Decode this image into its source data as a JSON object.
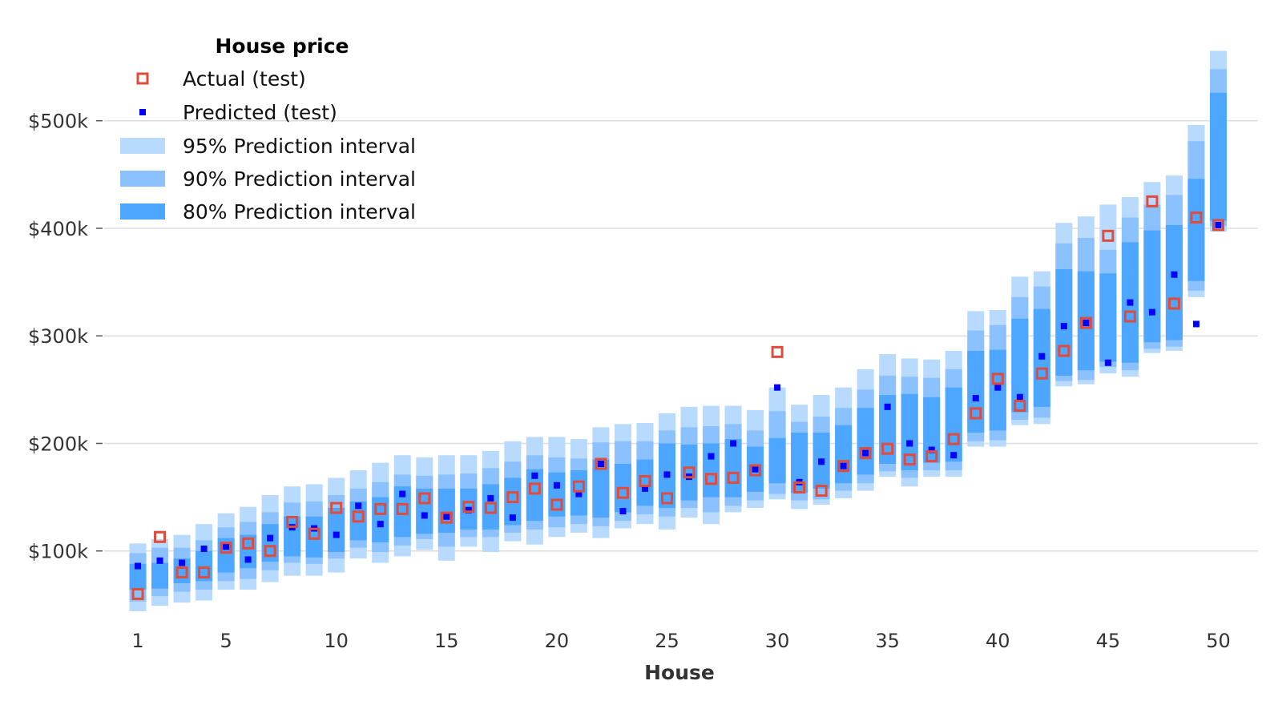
{
  "chart_data": {
    "type": "scatter",
    "title": "",
    "xlabel": "House",
    "ylabel": "",
    "xlim": [
      0.2,
      51.8
    ],
    "ylim": [
      35000,
      575000
    ],
    "x_ticks": [
      1,
      5,
      10,
      15,
      20,
      25,
      30,
      35,
      40,
      45,
      50
    ],
    "y_ticks": [
      {
        "value": 100000,
        "label": "$100k"
      },
      {
        "value": 200000,
        "label": "$200k"
      },
      {
        "value": 300000,
        "label": "$300k"
      },
      {
        "value": 400000,
        "label": "$400k"
      },
      {
        "value": 500000,
        "label": "$500k"
      }
    ],
    "grid": "horizontal",
    "legend": {
      "title": "House price",
      "position": "top-left",
      "entries": [
        {
          "label": "Actual (test)",
          "kind": "actual"
        },
        {
          "label": "Predicted (test)",
          "kind": "predicted"
        },
        {
          "label": "95% Prediction interval",
          "kind": "pi95"
        },
        {
          "label": "90% Prediction interval",
          "kind": "pi90"
        },
        {
          "label": "80% Prediction interval",
          "kind": "pi80"
        }
      ]
    },
    "colors": {
      "actual": "#e04b3a",
      "predicted": "#0000ff",
      "pi95": "#b8daff",
      "pi90": "#8cc1ff",
      "pi80": "#4da6ff",
      "grid": "#dddddd"
    },
    "x": [
      1,
      2,
      3,
      4,
      5,
      6,
      7,
      8,
      9,
      10,
      11,
      12,
      13,
      14,
      15,
      16,
      17,
      18,
      19,
      20,
      21,
      22,
      23,
      24,
      25,
      26,
      27,
      28,
      29,
      30,
      31,
      32,
      33,
      34,
      35,
      36,
      37,
      38,
      39,
      40,
      41,
      42,
      43,
      44,
      45,
      46,
      47,
      48,
      49,
      50
    ],
    "actual": [
      60000,
      113000,
      80000,
      80000,
      103000,
      107000,
      100000,
      127000,
      116000,
      140000,
      132000,
      139000,
      139000,
      149000,
      131000,
      141000,
      140000,
      150000,
      158000,
      143000,
      160000,
      181000,
      154000,
      165000,
      149000,
      173000,
      167000,
      168000,
      175000,
      285000,
      159000,
      156000,
      179000,
      191000,
      195000,
      185000,
      188000,
      204000,
      228000,
      260000,
      235000,
      265000,
      286000,
      312000,
      393000,
      318000,
      425000,
      330000,
      410000,
      403000
    ],
    "predicted": [
      86000,
      91000,
      89000,
      102000,
      104000,
      92000,
      112000,
      122000,
      121000,
      115000,
      142000,
      125000,
      153000,
      133000,
      132000,
      138000,
      149000,
      131000,
      170000,
      161000,
      153000,
      181000,
      137000,
      158000,
      171000,
      169000,
      188000,
      200000,
      176000,
      252000,
      164000,
      183000,
      179000,
      191000,
      234000,
      200000,
      194000,
      189000,
      242000,
      252000,
      243000,
      281000,
      309000,
      312000,
      275000,
      331000,
      322000,
      357000,
      311000,
      403000
    ],
    "pi95": [
      [
        44000,
        107000
      ],
      [
        49000,
        111000
      ],
      [
        52000,
        115000
      ],
      [
        54000,
        125000
      ],
      [
        64000,
        135000
      ],
      [
        64000,
        141000
      ],
      [
        71000,
        152000
      ],
      [
        77000,
        160000
      ],
      [
        77000,
        162000
      ],
      [
        80000,
        168000
      ],
      [
        93000,
        175000
      ],
      [
        89000,
        182000
      ],
      [
        95000,
        189000
      ],
      [
        101000,
        187000
      ],
      [
        91000,
        189000
      ],
      [
        104000,
        189000
      ],
      [
        99000,
        193000
      ],
      [
        109000,
        202000
      ],
      [
        106000,
        206000
      ],
      [
        113000,
        206000
      ],
      [
        117000,
        204000
      ],
      [
        112000,
        215000
      ],
      [
        121000,
        218000
      ],
      [
        125000,
        219000
      ],
      [
        120000,
        228000
      ],
      [
        131000,
        234000
      ],
      [
        125000,
        235000
      ],
      [
        136000,
        235000
      ],
      [
        140000,
        231000
      ],
      [
        148000,
        252000
      ],
      [
        139000,
        236000
      ],
      [
        143000,
        245000
      ],
      [
        149000,
        252000
      ],
      [
        156000,
        269000
      ],
      [
        169000,
        283000
      ],
      [
        160000,
        279000
      ],
      [
        169000,
        278000
      ],
      [
        169000,
        286000
      ],
      [
        197000,
        323000
      ],
      [
        197000,
        324000
      ],
      [
        217000,
        355000
      ],
      [
        218000,
        360000
      ],
      [
        253000,
        405000
      ],
      [
        255000,
        411000
      ],
      [
        265000,
        422000
      ],
      [
        262000,
        429000
      ],
      [
        284000,
        443000
      ],
      [
        286000,
        449000
      ],
      [
        336000,
        496000
      ],
      [
        397000,
        565000
      ]
    ],
    "pi90": [
      [
        53000,
        98000
      ],
      [
        58000,
        103000
      ],
      [
        62000,
        103000
      ],
      [
        64000,
        110000
      ],
      [
        72000,
        122000
      ],
      [
        74000,
        127000
      ],
      [
        82000,
        136000
      ],
      [
        89000,
        145000
      ],
      [
        88000,
        146000
      ],
      [
        93000,
        152000
      ],
      [
        103000,
        158000
      ],
      [
        99000,
        164000
      ],
      [
        105000,
        171000
      ],
      [
        111000,
        170000
      ],
      [
        104000,
        171000
      ],
      [
        113000,
        172000
      ],
      [
        113000,
        177000
      ],
      [
        117000,
        183000
      ],
      [
        120000,
        189000
      ],
      [
        122000,
        187000
      ],
      [
        125000,
        186000
      ],
      [
        123000,
        201000
      ],
      [
        128000,
        202000
      ],
      [
        134000,
        202000
      ],
      [
        132000,
        212000
      ],
      [
        140000,
        215000
      ],
      [
        136000,
        216000
      ],
      [
        142000,
        218000
      ],
      [
        147000,
        212000
      ],
      [
        153000,
        230000
      ],
      [
        147000,
        220000
      ],
      [
        148000,
        225000
      ],
      [
        156000,
        233000
      ],
      [
        163000,
        250000
      ],
      [
        174000,
        263000
      ],
      [
        168000,
        262000
      ],
      [
        175000,
        261000
      ],
      [
        175000,
        269000
      ],
      [
        202000,
        305000
      ],
      [
        203000,
        310000
      ],
      [
        222000,
        336000
      ],
      [
        224000,
        346000
      ],
      [
        258000,
        386000
      ],
      [
        259000,
        391000
      ],
      [
        271000,
        380000
      ],
      [
        268000,
        410000
      ],
      [
        288000,
        422000
      ],
      [
        290000,
        431000
      ],
      [
        342000,
        481000
      ],
      [
        402000,
        548000
      ]
    ],
    "pi80": [
      [
        64000,
        88000
      ],
      [
        65000,
        89000
      ],
      [
        70000,
        93000
      ],
      [
        72000,
        100000
      ],
      [
        80000,
        112000
      ],
      [
        84000,
        115000
      ],
      [
        90000,
        125000
      ],
      [
        95000,
        132000
      ],
      [
        94000,
        132000
      ],
      [
        99000,
        140000
      ],
      [
        110000,
        146000
      ],
      [
        108000,
        150000
      ],
      [
        113000,
        160000
      ],
      [
        116000,
        158000
      ],
      [
        117000,
        158000
      ],
      [
        120000,
        158000
      ],
      [
        120000,
        162000
      ],
      [
        124000,
        168000
      ],
      [
        128000,
        176000
      ],
      [
        132000,
        173000
      ],
      [
        133000,
        175000
      ],
      [
        131000,
        185000
      ],
      [
        136000,
        181000
      ],
      [
        142000,
        185000
      ],
      [
        140000,
        200000
      ],
      [
        147000,
        199000
      ],
      [
        150000,
        200000
      ],
      [
        150000,
        204000
      ],
      [
        155000,
        197000
      ],
      [
        163000,
        205000
      ],
      [
        154000,
        210000
      ],
      [
        158000,
        210000
      ],
      [
        163000,
        217000
      ],
      [
        171000,
        233000
      ],
      [
        181000,
        245000
      ],
      [
        175000,
        246000
      ],
      [
        182000,
        243000
      ],
      [
        183000,
        252000
      ],
      [
        210000,
        286000
      ],
      [
        212000,
        287000
      ],
      [
        229000,
        316000
      ],
      [
        234000,
        325000
      ],
      [
        263000,
        362000
      ],
      [
        268000,
        360000
      ],
      [
        276000,
        358000
      ],
      [
        275000,
        387000
      ],
      [
        294000,
        398000
      ],
      [
        296000,
        403000
      ],
      [
        351000,
        446000
      ],
      [
        407000,
        526000
      ]
    ]
  }
}
